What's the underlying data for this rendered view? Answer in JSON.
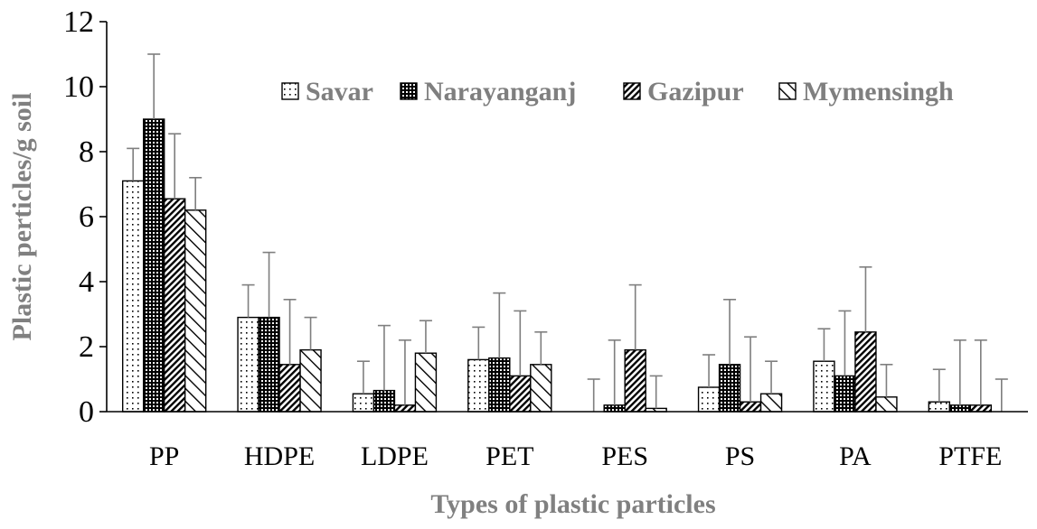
{
  "chart_data": {
    "type": "bar",
    "xlabel": "Types of plastic particles",
    "ylabel": "Plastic perticles/g soil",
    "ylim": [
      0,
      12
    ],
    "yticks": [
      0,
      2,
      4,
      6,
      8,
      10,
      12
    ],
    "grid": false,
    "legend_position": "top-right",
    "categories": [
      "PP",
      "HDPE",
      "LDPE",
      "PET",
      "PES",
      "PS",
      "PA",
      "PTFE"
    ],
    "series": [
      {
        "name": "Savar",
        "pattern": "dots",
        "values": [
          7.1,
          2.9,
          0.55,
          1.6,
          0.0,
          0.75,
          1.55,
          0.3
        ],
        "errors": [
          1.0,
          1.0,
          1.0,
          1.0,
          1.0,
          1.0,
          1.0,
          1.0
        ]
      },
      {
        "name": "Narayanganj",
        "pattern": "dense-grid",
        "values": [
          9.0,
          2.9,
          0.65,
          1.65,
          0.2,
          1.45,
          1.1,
          0.2
        ],
        "errors": [
          2.0,
          2.0,
          2.0,
          2.0,
          2.0,
          2.0,
          2.0,
          2.0
        ]
      },
      {
        "name": "Gazipur",
        "pattern": "diagonal-down",
        "values": [
          6.55,
          1.45,
          0.2,
          1.1,
          1.9,
          0.3,
          2.45,
          0.2
        ],
        "errors": [
          2.0,
          2.0,
          2.0,
          2.0,
          2.0,
          2.0,
          2.0,
          2.0
        ]
      },
      {
        "name": "Mymensingh",
        "pattern": "diagonal-up",
        "values": [
          6.2,
          1.9,
          1.8,
          1.45,
          0.1,
          0.55,
          0.45,
          0.0
        ],
        "errors": [
          1.0,
          1.0,
          1.0,
          1.0,
          1.0,
          1.0,
          1.0,
          1.0
        ]
      }
    ]
  }
}
